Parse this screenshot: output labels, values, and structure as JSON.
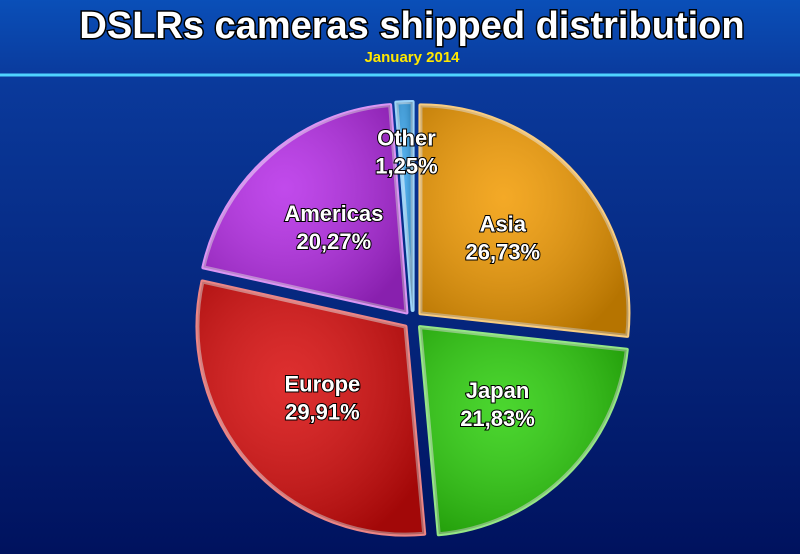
{
  "chart_data": {
    "type": "pie",
    "title": "DSLRs cameras shipped distribution",
    "subtitle": "January 2014",
    "categories": [
      "Asia",
      "Japan",
      "Europe",
      "Americas",
      "Other"
    ],
    "values": [
      26.73,
      21.83,
      29.91,
      20.27,
      1.25
    ],
    "value_labels": [
      "26,73%",
      "21,83%",
      "29,91%",
      "20,27%",
      "1,25%"
    ],
    "colors": [
      "#f29a00",
      "#2bcf0a",
      "#d80a0a",
      "#b62ae8",
      "#3aa8f0"
    ]
  }
}
